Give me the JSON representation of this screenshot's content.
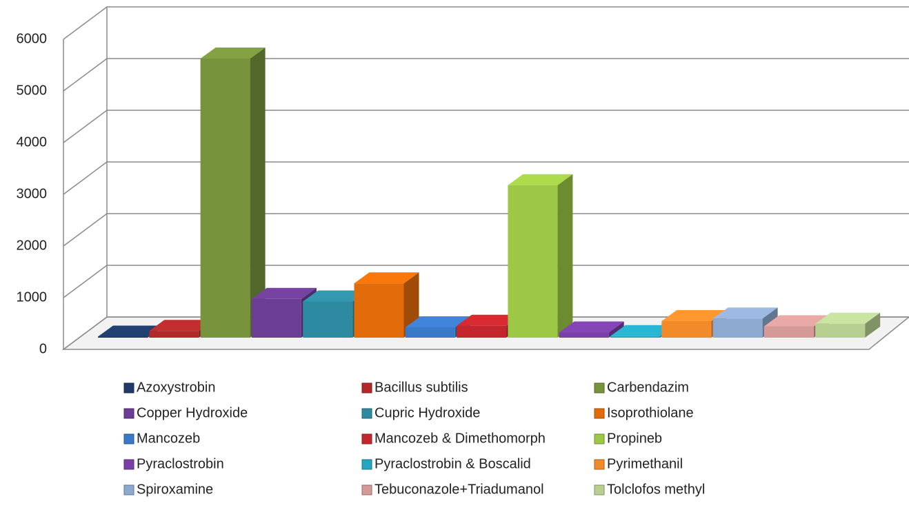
{
  "chart_data": {
    "type": "bar3d",
    "categories": [
      "Azoxystrobin",
      "Bacillus subtilis",
      "Carbendazim",
      "Copper Hydroxide",
      "Cupric Hydroxide",
      "Isoprothiolane",
      "Mancozeb",
      "Mancozeb & Dimethomorph",
      "Propineb",
      "Pyraclostrobin",
      "Pyraclostrobin & Boscalid",
      "Pyrimethanil",
      "Spiroxamine",
      "Tebuconazole+Triadumanol",
      "Tolclofos methyl"
    ],
    "values": [
      20,
      130,
      5400,
      750,
      700,
      1050,
      200,
      230,
      2950,
      100,
      30,
      320,
      370,
      220,
      270
    ],
    "colors": [
      "#1f3a68",
      "#b02a2a",
      "#77933c",
      "#6b3d94",
      "#2e8aa0",
      "#e36c0a",
      "#3a78c8",
      "#c4262d",
      "#9cc845",
      "#7a3fa6",
      "#25a5c2",
      "#f28a2a",
      "#8ea9cf",
      "#d49a98",
      "#b7d092"
    ],
    "ylim": [
      0,
      6000
    ],
    "yticks": [
      0,
      1000,
      2000,
      3000,
      4000,
      5000,
      6000
    ],
    "grid": true
  }
}
